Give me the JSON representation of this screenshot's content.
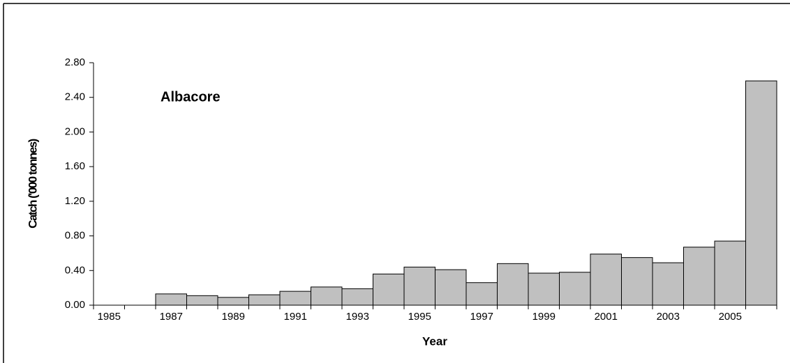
{
  "chart_data": {
    "type": "bar",
    "annotation": "Albacore",
    "y_label": "Catch ('000 tonnes)",
    "x_label": "Year",
    "categories": [
      "1985",
      null,
      "1987",
      null,
      "1989",
      null,
      "1991",
      null,
      "1993",
      null,
      "1995",
      null,
      "1997",
      null,
      "1999",
      null,
      "2001",
      null,
      "2003",
      null,
      "2005",
      null
    ],
    "values": [
      0,
      0,
      0.13,
      0.11,
      0.09,
      0.12,
      0.16,
      0.21,
      0.19,
      0.36,
      0.44,
      0.41,
      0.26,
      0.48,
      0.37,
      0.38,
      0.59,
      0.55,
      0.49,
      0.67,
      0.74,
      2.59
    ],
    "color": "#c0c0c0",
    "ylim": [
      0,
      2.8
    ],
    "yticks": [
      {
        "value": 0,
        "label": "0.00"
      },
      {
        "value": 0.4,
        "label": "0.40"
      },
      {
        "value": 0.8,
        "label": "0.80"
      },
      {
        "value": 1.2,
        "label": "1.20"
      },
      {
        "value": 1.6,
        "label": "1.60"
      },
      {
        "value": 2.0,
        "label": "2.00"
      },
      {
        "value": 2.4,
        "label": "2.40"
      },
      {
        "value": 2.8,
        "label": "2.80"
      }
    ],
    "grid": false
  }
}
